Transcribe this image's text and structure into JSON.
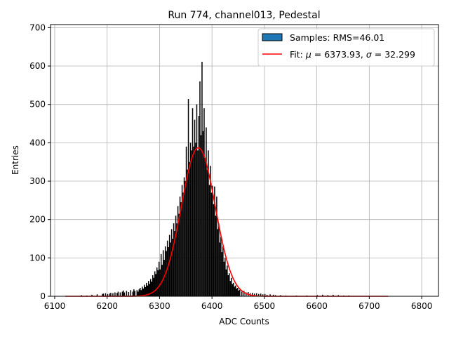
{
  "chart_data": {
    "type": "bar",
    "title": "Run 774, channel013, Pedestal",
    "xlabel": "ADC Counts",
    "ylabel": "Entries",
    "xlim": [
      6092,
      6832
    ],
    "ylim": [
      0,
      708
    ],
    "x_ticks": [
      6100,
      6200,
      6300,
      6400,
      6500,
      6600,
      6700,
      6800
    ],
    "y_ticks": [
      0,
      100,
      200,
      300,
      400,
      500,
      600,
      700
    ],
    "grid": true,
    "legend_position": "top-right",
    "colors": {
      "hist_fill": "#000000",
      "legend_patch": "#1f77b4",
      "fit_line": "#ff0000",
      "grid": "#b0b0b0"
    },
    "series": [
      {
        "name": "Samples: RMS=46.01",
        "kind": "histogram",
        "bin_width": 2,
        "bins": [
          [
            6150,
            3
          ],
          [
            6160,
            2
          ],
          [
            6170,
            4
          ],
          [
            6180,
            5
          ],
          [
            6190,
            6
          ],
          [
            6192,
            7
          ],
          [
            6196,
            8
          ],
          [
            6200,
            6
          ],
          [
            6204,
            7
          ],
          [
            6206,
            9
          ],
          [
            6210,
            8
          ],
          [
            6214,
            10
          ],
          [
            6218,
            9
          ],
          [
            6220,
            12
          ],
          [
            6224,
            10
          ],
          [
            6228,
            12
          ],
          [
            6230,
            15
          ],
          [
            6232,
            10
          ],
          [
            6236,
            14
          ],
          [
            6240,
            11
          ],
          [
            6244,
            16
          ],
          [
            6248,
            12
          ],
          [
            6250,
            18
          ],
          [
            6252,
            14
          ],
          [
            6256,
            16
          ],
          [
            6258,
            12
          ],
          [
            6260,
            18
          ],
          [
            6262,
            22
          ],
          [
            6264,
            16
          ],
          [
            6266,
            25
          ],
          [
            6268,
            20
          ],
          [
            6270,
            30
          ],
          [
            6272,
            24
          ],
          [
            6274,
            35
          ],
          [
            6276,
            28
          ],
          [
            6278,
            40
          ],
          [
            6280,
            32
          ],
          [
            6282,
            45
          ],
          [
            6284,
            38
          ],
          [
            6286,
            55
          ],
          [
            6288,
            48
          ],
          [
            6290,
            65
          ],
          [
            6292,
            58
          ],
          [
            6294,
            75
          ],
          [
            6296,
            68
          ],
          [
            6298,
            90
          ],
          [
            6300,
            70
          ],
          [
            6302,
            110
          ],
          [
            6304,
            82
          ],
          [
            6306,
            120
          ],
          [
            6308,
            95
          ],
          [
            6310,
            130
          ],
          [
            6312,
            118
          ],
          [
            6314,
            145
          ],
          [
            6316,
            128
          ],
          [
            6318,
            160
          ],
          [
            6320,
            140
          ],
          [
            6322,
            175
          ],
          [
            6324,
            150
          ],
          [
            6326,
            190
          ],
          [
            6328,
            170
          ],
          [
            6330,
            210
          ],
          [
            6332,
            190
          ],
          [
            6334,
            235
          ],
          [
            6336,
            215
          ],
          [
            6338,
            260
          ],
          [
            6340,
            245
          ],
          [
            6342,
            290
          ],
          [
            6344,
            270
          ],
          [
            6346,
            310
          ],
          [
            6348,
            300
          ],
          [
            6350,
            390
          ],
          [
            6352,
            330
          ],
          [
            6354,
            514
          ],
          [
            6356,
            350
          ],
          [
            6358,
            400
          ],
          [
            6360,
            380
          ],
          [
            6362,
            490
          ],
          [
            6364,
            390
          ],
          [
            6366,
            460
          ],
          [
            6368,
            400
          ],
          [
            6370,
            500
          ],
          [
            6372,
            380
          ],
          [
            6374,
            470
          ],
          [
            6376,
            560
          ],
          [
            6378,
            420
          ],
          [
            6380,
            611
          ],
          [
            6382,
            430
          ],
          [
            6384,
            490
          ],
          [
            6386,
            360
          ],
          [
            6388,
            440
          ],
          [
            6390,
            330
          ],
          [
            6392,
            380
          ],
          [
            6394,
            290
          ],
          [
            6396,
            340
          ],
          [
            6398,
            270
          ],
          [
            6400,
            288
          ],
          [
            6402,
            240
          ],
          [
            6404,
            286
          ],
          [
            6406,
            210
          ],
          [
            6408,
            260
          ],
          [
            6410,
            175
          ],
          [
            6412,
            190
          ],
          [
            6414,
            140
          ],
          [
            6416,
            155
          ],
          [
            6418,
            115
          ],
          [
            6420,
            130
          ],
          [
            6422,
            90
          ],
          [
            6424,
            100
          ],
          [
            6426,
            70
          ],
          [
            6428,
            80
          ],
          [
            6430,
            55
          ],
          [
            6432,
            60
          ],
          [
            6434,
            40
          ],
          [
            6436,
            48
          ],
          [
            6438,
            32
          ],
          [
            6440,
            35
          ],
          [
            6442,
            25
          ],
          [
            6444,
            28
          ],
          [
            6446,
            20
          ],
          [
            6448,
            22
          ],
          [
            6450,
            15
          ],
          [
            6452,
            17
          ],
          [
            6456,
            12
          ],
          [
            6460,
            14
          ],
          [
            6464,
            10
          ],
          [
            6468,
            11
          ],
          [
            6472,
            8
          ],
          [
            6476,
            9
          ],
          [
            6480,
            7
          ],
          [
            6484,
            8
          ],
          [
            6488,
            6
          ],
          [
            6492,
            7
          ],
          [
            6496,
            5
          ],
          [
            6500,
            6
          ],
          [
            6504,
            4
          ],
          [
            6510,
            5
          ],
          [
            6516,
            4
          ],
          [
            6520,
            3
          ],
          [
            6530,
            3
          ],
          [
            6540,
            2
          ],
          [
            6560,
            2
          ],
          [
            6580,
            2
          ],
          [
            6600,
            3
          ],
          [
            6610,
            4
          ],
          [
            6620,
            3
          ],
          [
            6630,
            4
          ],
          [
            6640,
            3
          ],
          [
            6650,
            2
          ],
          [
            6660,
            2
          ]
        ]
      },
      {
        "name": "Fit: μ = 6373.93, σ = 32.299",
        "legend_prefix": "Fit: ",
        "legend_mu_symbol": "μ",
        "legend_mu_value": " = 6373.93, ",
        "legend_sigma_symbol": "σ",
        "legend_sigma_value": " = 32.299",
        "kind": "gaussian",
        "mu": 6373.93,
        "sigma": 32.299,
        "amplitude": 387,
        "x_range": [
          6120,
          6736
        ]
      }
    ]
  }
}
